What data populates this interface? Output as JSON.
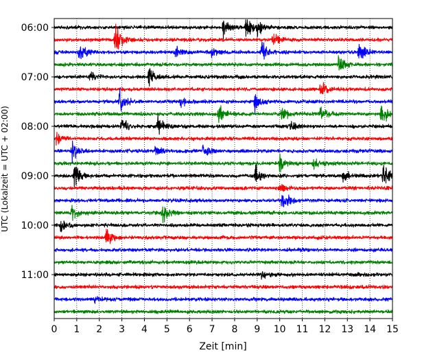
{
  "chart_data": {
    "type": "line",
    "title": "",
    "xlabel": "Zeit  [min]",
    "ylabel": "UTC (Lokalzeit = UTC + 02:00)",
    "xlim": [
      0,
      15
    ],
    "xticks": [
      0,
      1,
      2,
      3,
      4,
      5,
      6,
      7,
      8,
      9,
      10,
      11,
      12,
      13,
      14,
      15
    ],
    "ytick_labels": [
      "06:00",
      "07:00",
      "08:00",
      "09:00",
      "10:00",
      "11:00"
    ],
    "grid": "vertical dotted at each minute",
    "trace_colors": [
      "#000000",
      "#ff0000",
      "#0000ff",
      "#008000"
    ],
    "traces": [
      {
        "start": "06:00",
        "color": "#000000",
        "bursts": [
          [
            7.5,
            1.8
          ],
          [
            8.5,
            2.4
          ],
          [
            9.0,
            1.2
          ]
        ]
      },
      {
        "start": "06:15",
        "color": "#ff0000",
        "bursts": [
          [
            2.7,
            3.2
          ],
          [
            9.7,
            1.2
          ]
        ]
      },
      {
        "start": "06:30",
        "color": "#0000ff",
        "bursts": [
          [
            1.1,
            2.0
          ],
          [
            5.4,
            1.6
          ],
          [
            7.0,
            1.0
          ],
          [
            9.2,
            1.6
          ],
          [
            13.5,
            2.0
          ]
        ]
      },
      {
        "start": "06:45",
        "color": "#008000",
        "bursts": [
          [
            12.6,
            1.8
          ]
        ]
      },
      {
        "start": "07:00",
        "color": "#000000",
        "bursts": [
          [
            1.6,
            1.0
          ],
          [
            4.2,
            1.8
          ]
        ]
      },
      {
        "start": "07:15",
        "color": "#ff0000",
        "bursts": [
          [
            11.8,
            1.6
          ]
        ]
      },
      {
        "start": "07:30",
        "color": "#0000ff",
        "bursts": [
          [
            2.9,
            2.0
          ],
          [
            5.6,
            1.2
          ],
          [
            8.9,
            2.0
          ]
        ]
      },
      {
        "start": "07:45",
        "color": "#008000",
        "bursts": [
          [
            7.3,
            1.6
          ],
          [
            10.1,
            1.2
          ],
          [
            11.8,
            1.2
          ],
          [
            14.5,
            2.2
          ]
        ]
      },
      {
        "start": "08:00",
        "color": "#000000",
        "bursts": [
          [
            3.0,
            1.4
          ],
          [
            4.6,
            2.0
          ],
          [
            10.5,
            0.8
          ]
        ]
      },
      {
        "start": "08:15",
        "color": "#ff0000",
        "bursts": [
          [
            0.1,
            1.2
          ]
        ]
      },
      {
        "start": "08:30",
        "color": "#0000ff",
        "bursts": [
          [
            0.8,
            2.0
          ],
          [
            4.5,
            1.2
          ],
          [
            6.6,
            1.6
          ]
        ]
      },
      {
        "start": "08:45",
        "color": "#008000",
        "bursts": [
          [
            10.0,
            1.4
          ],
          [
            11.5,
            1.0
          ]
        ]
      },
      {
        "start": "09:00",
        "color": "#000000",
        "bursts": [
          [
            0.9,
            2.4
          ],
          [
            8.9,
            2.2
          ],
          [
            12.8,
            1.4
          ],
          [
            14.6,
            2.2
          ]
        ]
      },
      {
        "start": "09:15",
        "color": "#ff0000",
        "bursts": [
          [
            10.0,
            1.0
          ]
        ]
      },
      {
        "start": "09:30",
        "color": "#0000ff",
        "bursts": [
          [
            10.1,
            2.0
          ]
        ]
      },
      {
        "start": "09:45",
        "color": "#008000",
        "bursts": [
          [
            0.8,
            1.4
          ],
          [
            4.8,
            2.0
          ]
        ]
      },
      {
        "start": "10:00",
        "color": "#000000",
        "bursts": [
          [
            0.3,
            1.0
          ]
        ]
      },
      {
        "start": "10:15",
        "color": "#ff0000",
        "bursts": [
          [
            2.3,
            1.6
          ]
        ]
      },
      {
        "start": "10:30",
        "color": "#0000ff",
        "bursts": []
      },
      {
        "start": "10:45",
        "color": "#008000",
        "bursts": []
      },
      {
        "start": "11:00",
        "color": "#000000",
        "bursts": [
          [
            9.2,
            0.6
          ]
        ]
      },
      {
        "start": "11:15",
        "color": "#ff0000",
        "bursts": []
      },
      {
        "start": "11:30",
        "color": "#0000ff",
        "bursts": [
          [
            1.8,
            0.5
          ]
        ]
      },
      {
        "start": "11:45",
        "color": "#008000",
        "bursts": []
      }
    ]
  }
}
